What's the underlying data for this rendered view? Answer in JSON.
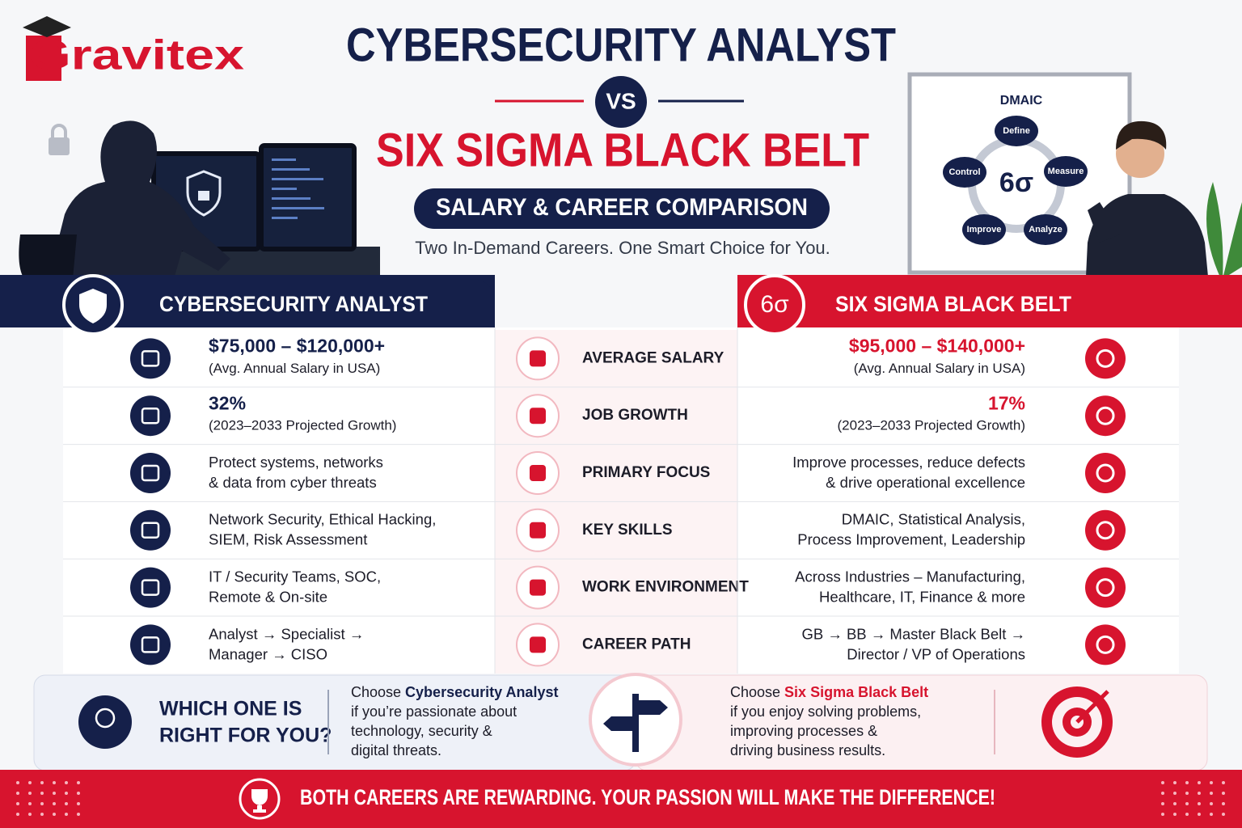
{
  "logo": "Gravitex",
  "header": {
    "title_left": "CYBERSECURITY ANALYST",
    "vs": "VS",
    "title_right": "SIX SIGMA BLACK BELT",
    "subtitle": "SALARY & CAREER COMPARISON",
    "tagline": "Two In-Demand Careers. One Smart Choice for You."
  },
  "whiteboard": {
    "title": "DMAIC",
    "center": "6σ",
    "steps": [
      "Define",
      "Measure",
      "Analyze",
      "Improve",
      "Control"
    ]
  },
  "columns": {
    "left": "CYBERSECURITY ANALYST",
    "right_badge": "6σ",
    "right": "SIX SIGMA BLACK BELT"
  },
  "rows": [
    {
      "label": "AVERAGE SALARY",
      "left": [
        "$75,000 – $120,000+",
        "(Avg. Annual Salary in USA)"
      ],
      "right": [
        "$95,000 – $140,000+",
        "(Avg. Annual Salary in USA)"
      ]
    },
    {
      "label": "JOB GROWTH",
      "left": [
        "32%",
        "(2023–2033 Projected Growth)"
      ],
      "right": [
        "17%",
        "(2023–2033 Projected Growth)"
      ]
    },
    {
      "label": "PRIMARY FOCUS",
      "left": [
        "Protect systems, networks",
        "& data from cyber threats"
      ],
      "right": [
        "Improve processes, reduce defects",
        "& drive operational excellence"
      ]
    },
    {
      "label": "KEY SKILLS",
      "left": [
        "Network Security, Ethical Hacking,",
        "SIEM, Risk Assessment"
      ],
      "right": [
        "DMAIC, Statistical Analysis,",
        "Process Improvement, Leadership"
      ]
    },
    {
      "label": "WORK ENVIRONMENT",
      "left": [
        "IT / Security Teams, SOC,",
        "Remote & On-site"
      ],
      "right": [
        "Across Industries – Manufacturing,",
        "Healthcare, IT, Finance & more"
      ]
    },
    {
      "label": "CAREER PATH",
      "left": [
        "Analyst → Specialist →",
        "Manager → CISO"
      ],
      "right": [
        "GB → BB → Master Black Belt →",
        "Director / VP of Operations"
      ]
    }
  ],
  "decision": {
    "question": [
      "WHICH ONE IS",
      "RIGHT FOR YOU?"
    ],
    "left": {
      "lead": "Choose",
      "highlight": "Cybersecurity Analyst",
      "lines": [
        "if you’re passionate about",
        "technology, security &",
        "digital threats."
      ]
    },
    "right": {
      "lead": "Choose",
      "highlight": "Six Sigma Black Belt",
      "lines": [
        "if you enjoy solving problems,",
        "improving processes &",
        "driving business results."
      ]
    }
  },
  "footer": "BOTH CAREERS ARE REWARDING. YOUR PASSION WILL MAKE THE DIFFERENCE!"
}
